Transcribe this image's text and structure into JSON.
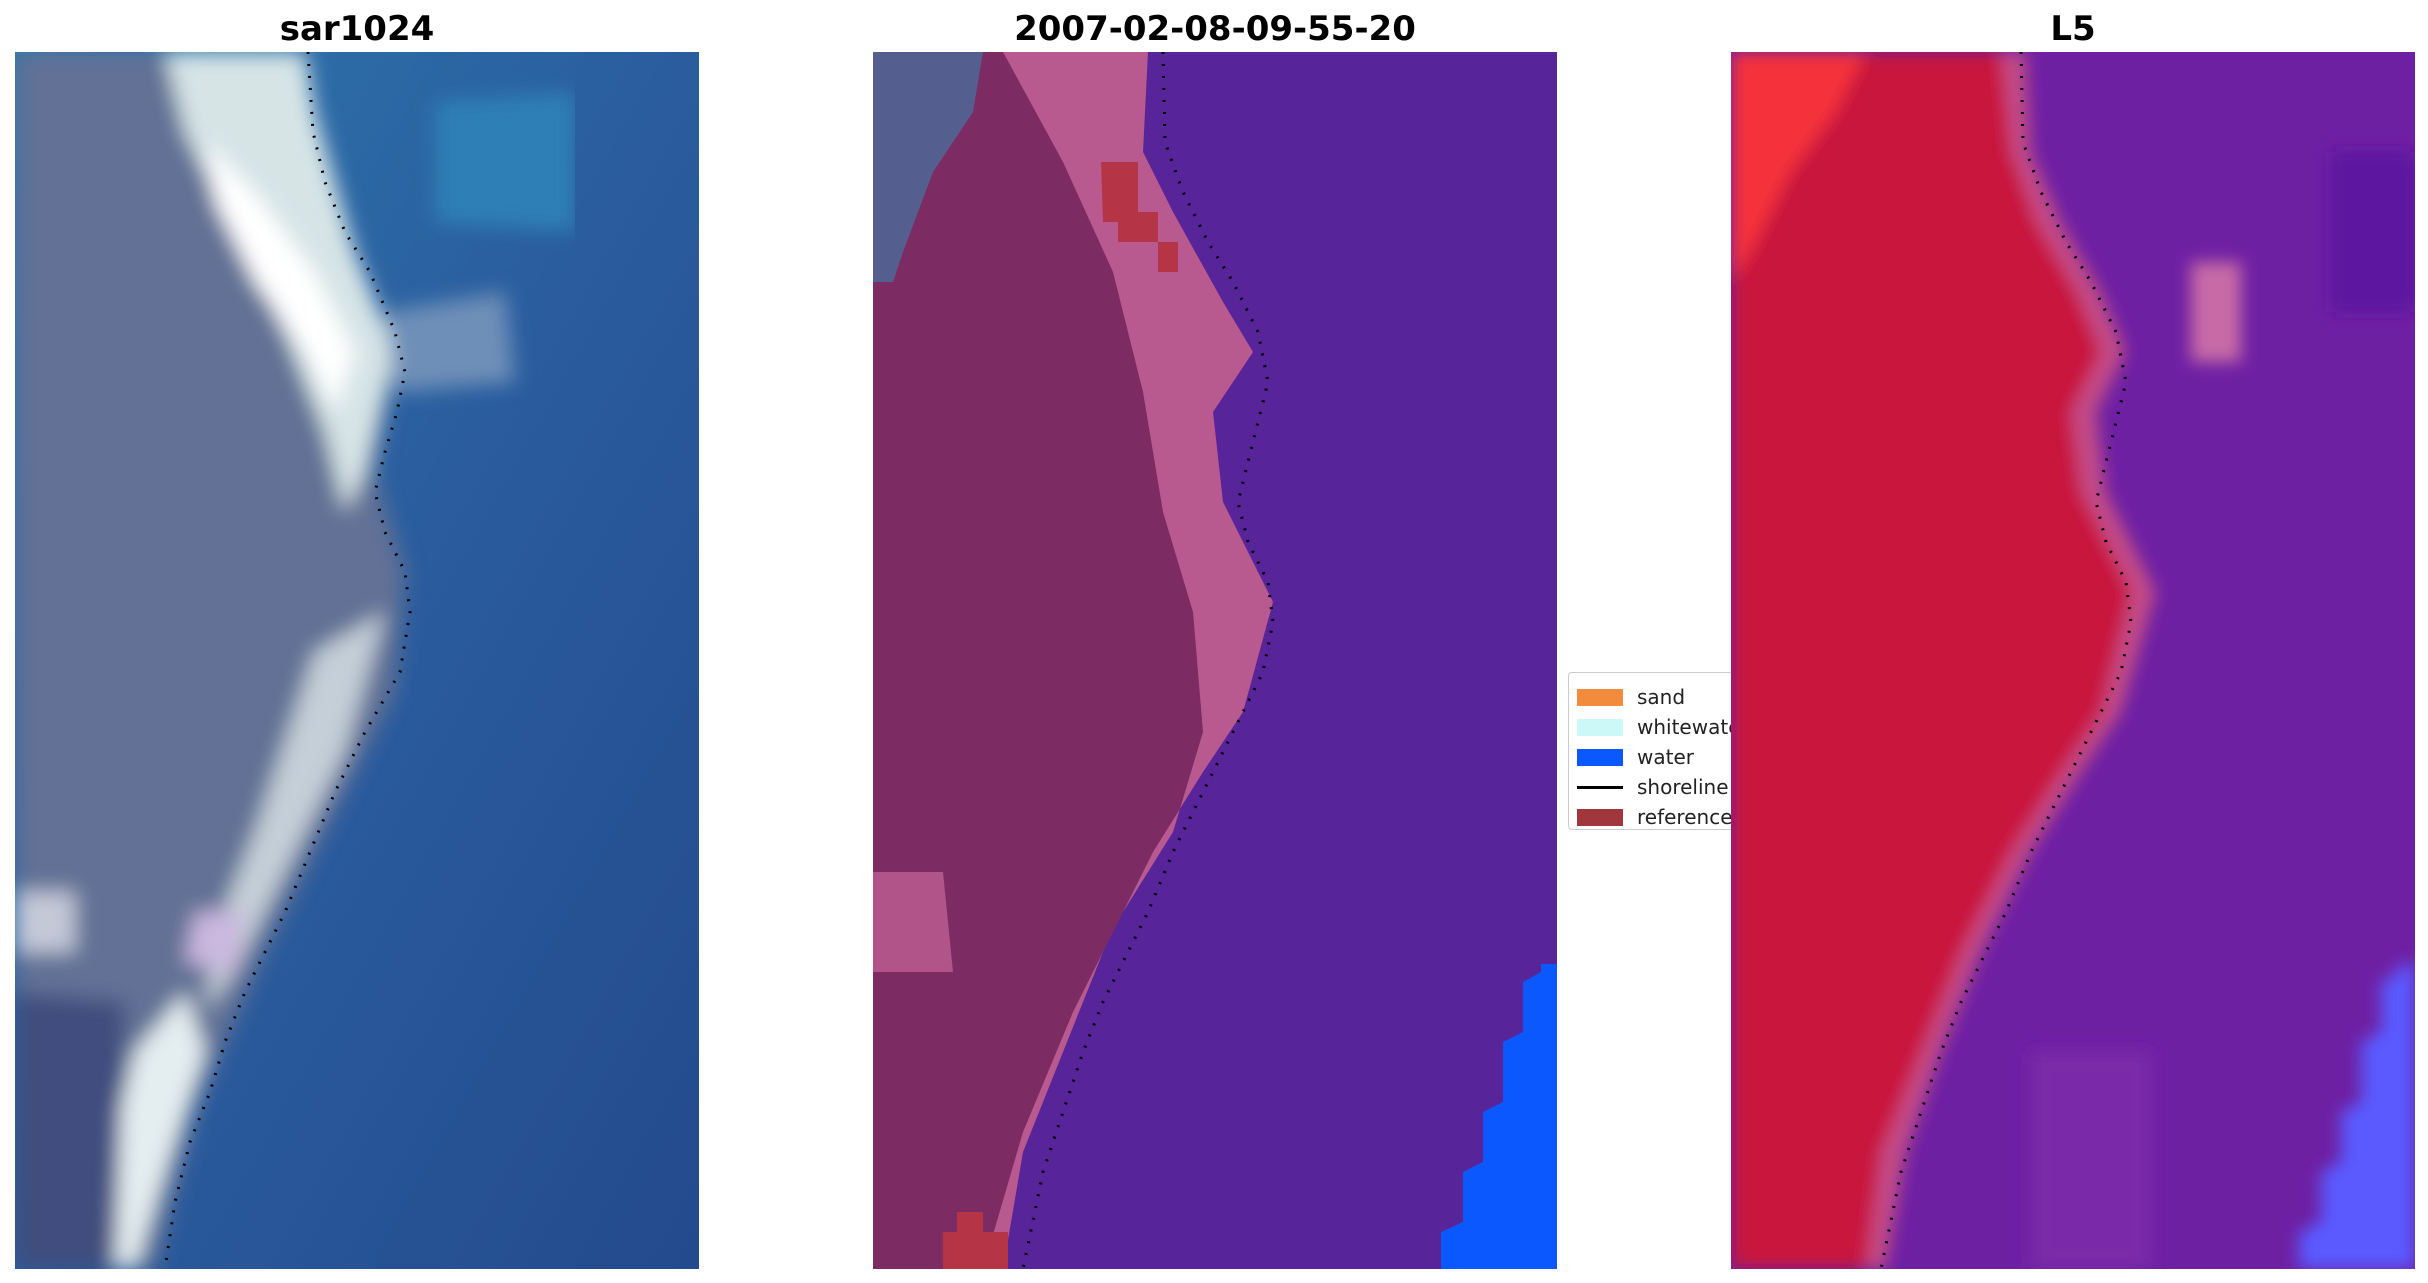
{
  "panels": [
    {
      "title": "sar1024"
    },
    {
      "title": "2007-02-08-09-55-20"
    },
    {
      "title": "L5"
    }
  ],
  "legend": {
    "items": [
      {
        "label": "sand",
        "color": "#f28c3c",
        "kind": "patch"
      },
      {
        "label": "whitewater",
        "color": "#ccf8f8",
        "kind": "patch"
      },
      {
        "label": "water",
        "color": "#0b58ff",
        "kind": "patch"
      },
      {
        "label": "shoreline",
        "color": "#000000",
        "kind": "line"
      },
      {
        "label": "reference",
        "color": "#a0373c",
        "kind": "patch"
      }
    ]
  },
  "colors": {
    "rgb_land": "#5e6f96",
    "rgb_beach": "#e8f0f0",
    "rgb_sea": "#2a5a9c",
    "class_land": "#7a2a62",
    "class_beach": "#b95a92",
    "class_sea": "#57249a",
    "class_water": "#0b58ff",
    "class_reference": "#a0373c",
    "fc_land": "#c0153c",
    "fc_sea": "#6f1fa6",
    "fc_water": "#5a5aff"
  }
}
